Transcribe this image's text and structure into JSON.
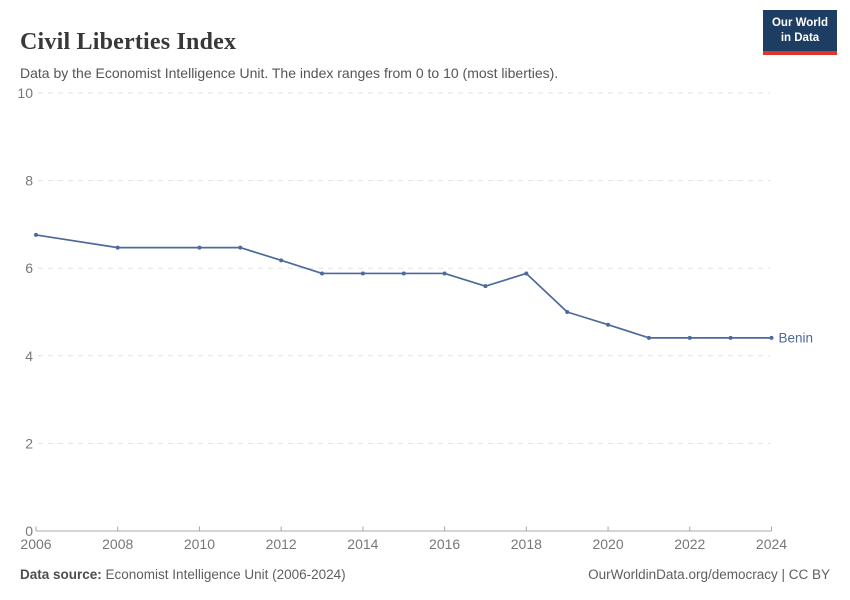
{
  "header": {
    "title": "Civil Liberties Index",
    "subtitle": "Data by the Economist Intelligence Unit. The index ranges from 0 to 10 (most liberties).",
    "logo": {
      "line1": "Our World",
      "line2": "in Data",
      "bg_color": "#1d3d63",
      "accent_color": "#dc352c"
    }
  },
  "chart_data": {
    "type": "line",
    "title": "Civil Liberties Index",
    "xlabel": "",
    "ylabel": "",
    "xlim": [
      2006,
      2024
    ],
    "ylim": [
      0,
      10
    ],
    "x_ticks": [
      2006,
      2008,
      2010,
      2012,
      2014,
      2016,
      2018,
      2020,
      2022,
      2024
    ],
    "y_ticks": [
      0,
      2,
      4,
      6,
      8,
      10
    ],
    "grid": "horizontal-dashed",
    "legend_position": "end-of-line-label",
    "colors": {
      "grid": "#e2e2e2",
      "axis": "#a8a8a8",
      "axis_text": "#787878"
    },
    "series": [
      {
        "name": "Benin",
        "color": "#4C6A9C",
        "points": [
          [
            2006,
            6.76
          ],
          [
            2008,
            6.47
          ],
          [
            2010,
            6.47
          ],
          [
            2011,
            6.47
          ],
          [
            2012,
            6.18
          ],
          [
            2013,
            5.88
          ],
          [
            2014,
            5.88
          ],
          [
            2015,
            5.88
          ],
          [
            2016,
            5.88
          ],
          [
            2017,
            5.59
          ],
          [
            2018,
            5.88
          ],
          [
            2019,
            5.0
          ],
          [
            2020,
            4.71
          ],
          [
            2021,
            4.41
          ],
          [
            2022,
            4.41
          ],
          [
            2023,
            4.41
          ],
          [
            2024,
            4.41
          ]
        ]
      }
    ]
  },
  "footer": {
    "source_label": "Data source:",
    "source_text": " Economist Intelligence Unit (2006-2024)",
    "credit": "OurWorldinData.org/democracy | CC BY"
  }
}
